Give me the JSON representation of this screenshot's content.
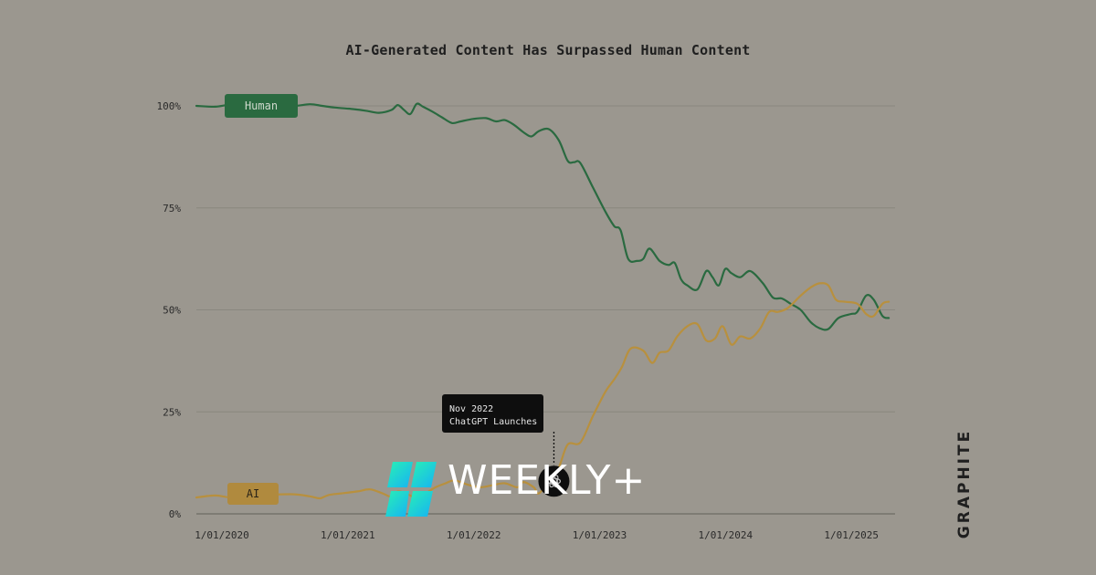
{
  "chart_data": {
    "type": "line",
    "title": "AI-Generated Content Has Surpassed Human Content",
    "yticks": [
      "0%",
      "25%",
      "50%",
      "75%",
      "100%"
    ],
    "ylim": [
      0,
      100
    ],
    "xticks": [
      {
        "label": "1/01/2020",
        "t": 2020
      },
      {
        "label": "1/01/2021",
        "t": 2021
      },
      {
        "label": "1/01/2022",
        "t": 2022
      },
      {
        "label": "1/01/2023",
        "t": 2023
      },
      {
        "label": "1/01/2024",
        "t": 2024
      },
      {
        "label": "1/01/2025",
        "t": 2025
      }
    ],
    "xlim": [
      2020,
      2025.55
    ],
    "grid": true,
    "series": [
      {
        "name": "Human",
        "color": "#2a6a40",
        "points": [
          [
            2020.0,
            100.0
          ],
          [
            2020.15,
            99.8
          ],
          [
            2020.28,
            100.3
          ],
          [
            2020.45,
            99.8
          ],
          [
            2020.75,
            99.9
          ],
          [
            2020.9,
            100.4
          ],
          [
            2021.0,
            100.0
          ],
          [
            2021.1,
            99.6
          ],
          [
            2021.25,
            99.2
          ],
          [
            2021.35,
            98.8
          ],
          [
            2021.45,
            98.3
          ],
          [
            2021.55,
            99.0
          ],
          [
            2021.6,
            100.2
          ],
          [
            2021.65,
            99.0
          ],
          [
            2021.7,
            98.0
          ],
          [
            2021.75,
            100.5
          ],
          [
            2021.8,
            99.8
          ],
          [
            2021.88,
            98.5
          ],
          [
            2021.95,
            97.2
          ],
          [
            2022.03,
            95.8
          ],
          [
            2022.1,
            96.2
          ],
          [
            2022.2,
            96.8
          ],
          [
            2022.3,
            97.0
          ],
          [
            2022.38,
            96.2
          ],
          [
            2022.45,
            96.5
          ],
          [
            2022.52,
            95.4
          ],
          [
            2022.6,
            93.5
          ],
          [
            2022.66,
            92.5
          ],
          [
            2022.72,
            93.8
          ],
          [
            2022.8,
            94.3
          ],
          [
            2022.88,
            91.5
          ],
          [
            2022.95,
            86.5
          ],
          [
            2023.0,
            86.2
          ],
          [
            2023.05,
            86.0
          ],
          [
            2023.15,
            80.0
          ],
          [
            2023.25,
            74.0
          ],
          [
            2023.32,
            70.5
          ],
          [
            2023.37,
            69.5
          ],
          [
            2023.43,
            62.5
          ],
          [
            2023.5,
            62.0
          ],
          [
            2023.55,
            62.5
          ],
          [
            2023.6,
            65.0
          ],
          [
            2023.68,
            62.0
          ],
          [
            2023.75,
            61.0
          ],
          [
            2023.8,
            61.5
          ],
          [
            2023.85,
            57.5
          ],
          [
            2023.9,
            56.0
          ],
          [
            2023.98,
            55.0
          ],
          [
            2024.05,
            59.5
          ],
          [
            2024.1,
            58.0
          ],
          [
            2024.15,
            56.0
          ],
          [
            2024.2,
            60.0
          ],
          [
            2024.25,
            59.0
          ],
          [
            2024.32,
            58.0
          ],
          [
            2024.4,
            59.5
          ],
          [
            2024.5,
            56.5
          ],
          [
            2024.58,
            53.0
          ],
          [
            2024.65,
            52.8
          ],
          [
            2024.72,
            51.5
          ],
          [
            2024.8,
            50.0
          ],
          [
            2024.88,
            47.0
          ],
          [
            2024.95,
            45.5
          ],
          [
            2025.02,
            45.3
          ],
          [
            2025.1,
            48.0
          ],
          [
            2025.2,
            49.0
          ],
          [
            2025.25,
            49.5
          ],
          [
            2025.32,
            53.5
          ],
          [
            2025.38,
            52.5
          ],
          [
            2025.45,
            48.5
          ],
          [
            2025.5,
            48.0
          ]
        ]
      },
      {
        "name": "AI",
        "color": "#b8903e",
        "points": [
          [
            2020.0,
            4.0
          ],
          [
            2020.15,
            4.5
          ],
          [
            2020.28,
            4.0
          ],
          [
            2020.45,
            4.5
          ],
          [
            2020.75,
            4.8
          ],
          [
            2020.9,
            4.3
          ],
          [
            2020.98,
            3.8
          ],
          [
            2021.05,
            4.6
          ],
          [
            2021.15,
            5.0
          ],
          [
            2021.28,
            5.5
          ],
          [
            2021.38,
            6.0
          ],
          [
            2021.48,
            5.0
          ],
          [
            2021.55,
            4.2
          ],
          [
            2021.6,
            5.5
          ],
          [
            2021.68,
            4.8
          ],
          [
            2021.75,
            3.8
          ],
          [
            2021.82,
            5.0
          ],
          [
            2021.9,
            6.5
          ],
          [
            2021.98,
            7.5
          ],
          [
            2022.05,
            8.2
          ],
          [
            2022.15,
            7.2
          ],
          [
            2022.25,
            6.5
          ],
          [
            2022.35,
            7.0
          ],
          [
            2022.45,
            7.5
          ],
          [
            2022.55,
            6.5
          ],
          [
            2022.6,
            7.8
          ],
          [
            2022.68,
            6.5
          ],
          [
            2022.72,
            5.0
          ],
          [
            2022.8,
            8.0
          ],
          [
            2022.88,
            11.5
          ],
          [
            2022.95,
            17.0
          ],
          [
            2023.05,
            17.5
          ],
          [
            2023.15,
            24.0
          ],
          [
            2023.25,
            30.0
          ],
          [
            2023.32,
            33.0
          ],
          [
            2023.38,
            36.0
          ],
          [
            2023.45,
            40.5
          ],
          [
            2023.55,
            40.0
          ],
          [
            2023.62,
            37.0
          ],
          [
            2023.68,
            39.5
          ],
          [
            2023.75,
            40.0
          ],
          [
            2023.82,
            43.5
          ],
          [
            2023.9,
            46.0
          ],
          [
            2023.98,
            46.5
          ],
          [
            2024.05,
            42.5
          ],
          [
            2024.12,
            43.0
          ],
          [
            2024.18,
            46.0
          ],
          [
            2024.25,
            41.5
          ],
          [
            2024.32,
            43.5
          ],
          [
            2024.4,
            43.0
          ],
          [
            2024.48,
            45.5
          ],
          [
            2024.55,
            49.5
          ],
          [
            2024.62,
            49.5
          ],
          [
            2024.7,
            50.5
          ],
          [
            2024.8,
            53.5
          ],
          [
            2024.88,
            55.5
          ],
          [
            2024.95,
            56.5
          ],
          [
            2025.02,
            56.0
          ],
          [
            2025.08,
            52.5
          ],
          [
            2025.15,
            52.0
          ],
          [
            2025.25,
            51.5
          ],
          [
            2025.32,
            49.0
          ],
          [
            2025.38,
            48.5
          ],
          [
            2025.45,
            51.5
          ],
          [
            2025.5,
            52.0
          ]
        ]
      }
    ],
    "annotation": {
      "lines": [
        "Nov 2022",
        "ChatGPT Launches"
      ],
      "t": 2022.84,
      "value": 8
    }
  },
  "brand": {
    "graphite": "GRAPHITE",
    "weekly": "WEEKLY+",
    "weekly_colors": [
      "#24e3b8",
      "#19b8f0"
    ]
  }
}
